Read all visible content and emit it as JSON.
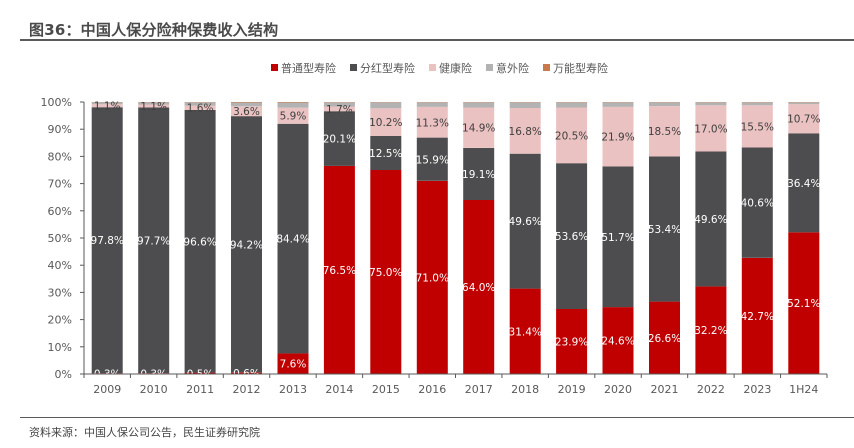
{
  "header": {
    "title": "图36：中国人保分险种保费收入结构"
  },
  "footer": {
    "source": "资料来源：中国人保公司公告，民生证券研究院"
  },
  "chart_data": {
    "type": "bar",
    "stacked": true,
    "title": "图36：中国人保分险种保费收入结构",
    "xlabel": "",
    "ylabel": "",
    "ylim": [
      0,
      100
    ],
    "yticks": [
      "0%",
      "10%",
      "20%",
      "30%",
      "40%",
      "50%",
      "60%",
      "70%",
      "80%",
      "90%",
      "100%"
    ],
    "legend_position": "top",
    "grid": false,
    "categories": [
      "2009",
      "2010",
      "2011",
      "2012",
      "2013",
      "2014",
      "2015",
      "2016",
      "2017",
      "2018",
      "2019",
      "2020",
      "2021",
      "2022",
      "2023",
      "1H24"
    ],
    "series": [
      {
        "name": "普通型寿险",
        "color": "#C00000",
        "label_color": "#ffffff",
        "values": [
          0.3,
          0.3,
          0.5,
          0.6,
          7.6,
          76.5,
          75.0,
          71.0,
          64.0,
          31.4,
          23.9,
          24.6,
          26.6,
          32.2,
          42.7,
          52.1
        ],
        "labels": [
          "0.3%",
          "0.3%",
          "0.5%",
          "0.6%",
          "7.6%",
          "76.5%",
          "75.0%",
          "71.0%",
          "64.0%",
          "31.4%",
          "23.9%",
          "24.6%",
          "26.6%",
          "32.2%",
          "42.7%",
          "52.1%"
        ]
      },
      {
        "name": "分红型寿险",
        "color": "#4D4D4F",
        "label_color": "#ffffff",
        "values": [
          97.8,
          97.7,
          96.6,
          94.2,
          84.4,
          20.1,
          12.5,
          15.9,
          19.1,
          49.6,
          53.6,
          51.7,
          53.4,
          49.6,
          40.6,
          36.4
        ],
        "labels": [
          "97.8%",
          "97.7%",
          "96.6%",
          "94.2%",
          "84.4%",
          "20.1%",
          "12.5%",
          "15.9%",
          "19.1%",
          "49.6%",
          "53.6%",
          "51.7%",
          "53.4%",
          "49.6%",
          "40.6%",
          "36.4%"
        ]
      },
      {
        "name": "健康险",
        "color": "#EBC2C2",
        "label_color": "#404040",
        "values": [
          1.1,
          1.1,
          1.6,
          3.6,
          5.9,
          1.7,
          10.2,
          11.3,
          14.9,
          16.8,
          20.5,
          21.9,
          18.5,
          17.0,
          15.5,
          10.7
        ],
        "labels": [
          "1.1%",
          "1.1%",
          "1.6%",
          "3.6%",
          "5.9%",
          "1.7%",
          "10.2%",
          "11.3%",
          "14.9%",
          "16.8%",
          "20.5%",
          "21.9%",
          "18.5%",
          "17.0%",
          "15.5%",
          "10.7%"
        ]
      },
      {
        "name": "意外险",
        "color": "#B3B3B3",
        "label_color": "#404040",
        "values": [
          0.7,
          0.8,
          1.2,
          1.4,
          1.9,
          1.6,
          2.2,
          1.7,
          1.9,
          2.1,
          1.9,
          1.7,
          1.4,
          1.1,
          1.1,
          0.7
        ],
        "labels": []
      },
      {
        "name": "万能型寿险",
        "color": "#C87A4A",
        "label_color": "#404040",
        "values": [
          0.1,
          0.1,
          0.1,
          0.2,
          0.2,
          0.1,
          0.1,
          0.1,
          0.1,
          0.1,
          0.1,
          0.1,
          0.1,
          0.1,
          0.1,
          0.1
        ],
        "labels": []
      }
    ]
  }
}
